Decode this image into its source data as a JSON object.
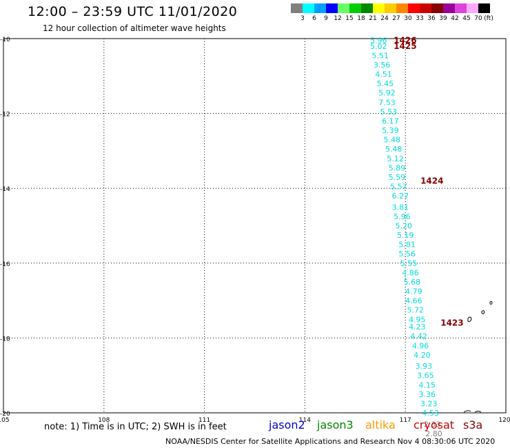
{
  "title": "12:00 – 23:59 UTC 11/01/2020",
  "subtitle": "12 hour collection of altimeter wave heights",
  "legend": {
    "unit": "(ft)",
    "bins": [
      {
        "label": "3",
        "color": "#808080"
      },
      {
        "label": "6",
        "color": "#00ffff"
      },
      {
        "label": "9",
        "color": "#00a0ff"
      },
      {
        "label": "12",
        "color": "#0000ff"
      },
      {
        "label": "15",
        "color": "#66ff66"
      },
      {
        "label": "18",
        "color": "#00cc00"
      },
      {
        "label": "21",
        "color": "#008800"
      },
      {
        "label": "24",
        "color": "#ffff00"
      },
      {
        "label": "27",
        "color": "#ffcc00"
      },
      {
        "label": "30",
        "color": "#ff8800"
      },
      {
        "label": "33",
        "color": "#ff0000"
      },
      {
        "label": "36",
        "color": "#cc0000"
      },
      {
        "label": "39",
        "color": "#880000"
      },
      {
        "label": "42",
        "color": "#990099"
      },
      {
        "label": "45",
        "color": "#dd44dd"
      },
      {
        "label": "70",
        "color": "#ffaaff"
      },
      {
        "label": "",
        "color": "#000000"
      }
    ]
  },
  "axes": {
    "lon_ticks": [
      "105",
      "108",
      "111",
      "114",
      "117",
      "120"
    ],
    "lat_ticks": [
      "-10",
      "-12",
      "-14",
      "-16",
      "-18",
      "-20"
    ]
  },
  "track": [
    {
      "lat": -10.05,
      "lon": 116.2,
      "v": "5.96"
    },
    {
      "lat": -10.2,
      "lon": 116.2,
      "v": "5.02"
    },
    {
      "lat": -10.45,
      "lon": 116.25,
      "v": "5.51"
    },
    {
      "lat": -10.7,
      "lon": 116.3,
      "v": "3.56"
    },
    {
      "lat": -10.95,
      "lon": 116.35,
      "v": "4.51"
    },
    {
      "lat": -11.2,
      "lon": 116.4,
      "v": "5.45"
    },
    {
      "lat": -11.45,
      "lon": 116.45,
      "v": "5.92"
    },
    {
      "lat": -11.7,
      "lon": 116.45,
      "v": "7.53"
    },
    {
      "lat": -11.95,
      "lon": 116.5,
      "v": "5.53"
    },
    {
      "lat": -12.2,
      "lon": 116.55,
      "v": "6.17"
    },
    {
      "lat": -12.45,
      "lon": 116.55,
      "v": "5.39"
    },
    {
      "lat": -12.7,
      "lon": 116.6,
      "v": "5.48"
    },
    {
      "lat": -12.95,
      "lon": 116.65,
      "v": "5.48"
    },
    {
      "lat": -13.2,
      "lon": 116.7,
      "v": "5.12"
    },
    {
      "lat": -13.45,
      "lon": 116.75,
      "v": "5.89"
    },
    {
      "lat": -13.7,
      "lon": 116.75,
      "v": "5.59"
    },
    {
      "lat": -13.95,
      "lon": 116.8,
      "v": "5.57"
    },
    {
      "lat": -14.2,
      "lon": 116.85,
      "v": "6.27"
    },
    {
      "lat": -14.5,
      "lon": 116.85,
      "v": "3.81"
    },
    {
      "lat": -14.75,
      "lon": 116.9,
      "v": "5.96"
    },
    {
      "lat": -15.0,
      "lon": 116.95,
      "v": "5.20"
    },
    {
      "lat": -15.25,
      "lon": 117.0,
      "v": "5.19"
    },
    {
      "lat": -15.5,
      "lon": 117.05,
      "v": "5.81"
    },
    {
      "lat": -15.75,
      "lon": 117.05,
      "v": "5.56"
    },
    {
      "lat": -16.0,
      "lon": 117.1,
      "v": "5.55"
    },
    {
      "lat": -16.25,
      "lon": 117.15,
      "v": "4.86"
    },
    {
      "lat": -16.5,
      "lon": 117.2,
      "v": "5.68"
    },
    {
      "lat": -16.75,
      "lon": 117.25,
      "v": "4.79"
    },
    {
      "lat": -17.0,
      "lon": 117.25,
      "v": "4.66"
    },
    {
      "lat": -17.25,
      "lon": 117.3,
      "v": "5.72"
    },
    {
      "lat": -17.5,
      "lon": 117.35,
      "v": "4.95"
    },
    {
      "lat": -17.7,
      "lon": 117.35,
      "v": "4.23"
    },
    {
      "lat": -17.95,
      "lon": 117.4,
      "v": "4.42"
    },
    {
      "lat": -18.2,
      "lon": 117.45,
      "v": "4.96"
    },
    {
      "lat": -18.45,
      "lon": 117.5,
      "v": "4.20"
    },
    {
      "lat": -18.75,
      "lon": 117.55,
      "v": "3.93"
    },
    {
      "lat": -19.0,
      "lon": 117.6,
      "v": "3.65"
    },
    {
      "lat": -19.25,
      "lon": 117.65,
      "v": "4.15"
    },
    {
      "lat": -19.5,
      "lon": 117.65,
      "v": "3.36"
    },
    {
      "lat": -19.75,
      "lon": 117.7,
      "v": "3.23"
    },
    {
      "lat": -20.0,
      "lon": 117.75,
      "v": "4.53"
    }
  ],
  "track_gray": [
    {
      "lat": -20.3,
      "lon": 117.8,
      "v": "2.33"
    },
    {
      "lat": -20.55,
      "lon": 117.85,
      "v": "2.80"
    }
  ],
  "times": [
    {
      "lat": -10.05,
      "lon": 116.65,
      "v": "1426"
    },
    {
      "lat": -10.2,
      "lon": 116.65,
      "v": "1425"
    },
    {
      "lat": -13.8,
      "lon": 117.45,
      "v": "1424"
    },
    {
      "lat": -17.6,
      "lon": 118.05,
      "v": "1423"
    }
  ],
  "note": "note:  1) Time is in UTC;  2) SWH is in feet",
  "satellites": [
    {
      "name": "jason2",
      "color": "#0000cc"
    },
    {
      "name": "jason3",
      "color": "#008800"
    },
    {
      "name": "altika",
      "color": "#ff9900"
    },
    {
      "name": "cryosat",
      "color": "#cc0000"
    },
    {
      "name": "s3a",
      "color": "#880000"
    }
  ],
  "credit": "NOAA/NESDIS Center for Satellite Applications and Research    Nov  4 08:30:06 UTC 2020"
}
